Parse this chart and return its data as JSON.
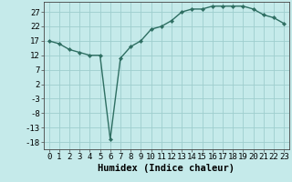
{
  "x": [
    0,
    1,
    2,
    3,
    4,
    5,
    6,
    7,
    8,
    9,
    10,
    11,
    12,
    13,
    14,
    15,
    16,
    17,
    18,
    19,
    20,
    21,
    22,
    23
  ],
  "y": [
    17,
    16,
    14,
    13,
    12,
    12,
    -17,
    11,
    15,
    17,
    21,
    22,
    24,
    27,
    28,
    28,
    29,
    29,
    29,
    29,
    28,
    26,
    25,
    23
  ],
  "line_color": "#2e6e62",
  "marker": "D",
  "marker_size": 2.2,
  "bg_color": "#c5eaea",
  "grid_color": "#9ecece",
  "xlabel": "Humidex (Indice chaleur)",
  "yticks": [
    27,
    22,
    17,
    12,
    7,
    2,
    -3,
    -8,
    -13,
    -18
  ],
  "xticks": [
    0,
    1,
    2,
    3,
    4,
    5,
    6,
    7,
    8,
    9,
    10,
    11,
    12,
    13,
    14,
    15,
    16,
    17,
    18,
    19,
    20,
    21,
    22,
    23
  ],
  "xlim": [
    -0.5,
    23.5
  ],
  "ylim": [
    -20.5,
    30.5
  ],
  "xlabel_fontsize": 7.5,
  "tick_fontsize": 6.5,
  "line_width": 1.0
}
